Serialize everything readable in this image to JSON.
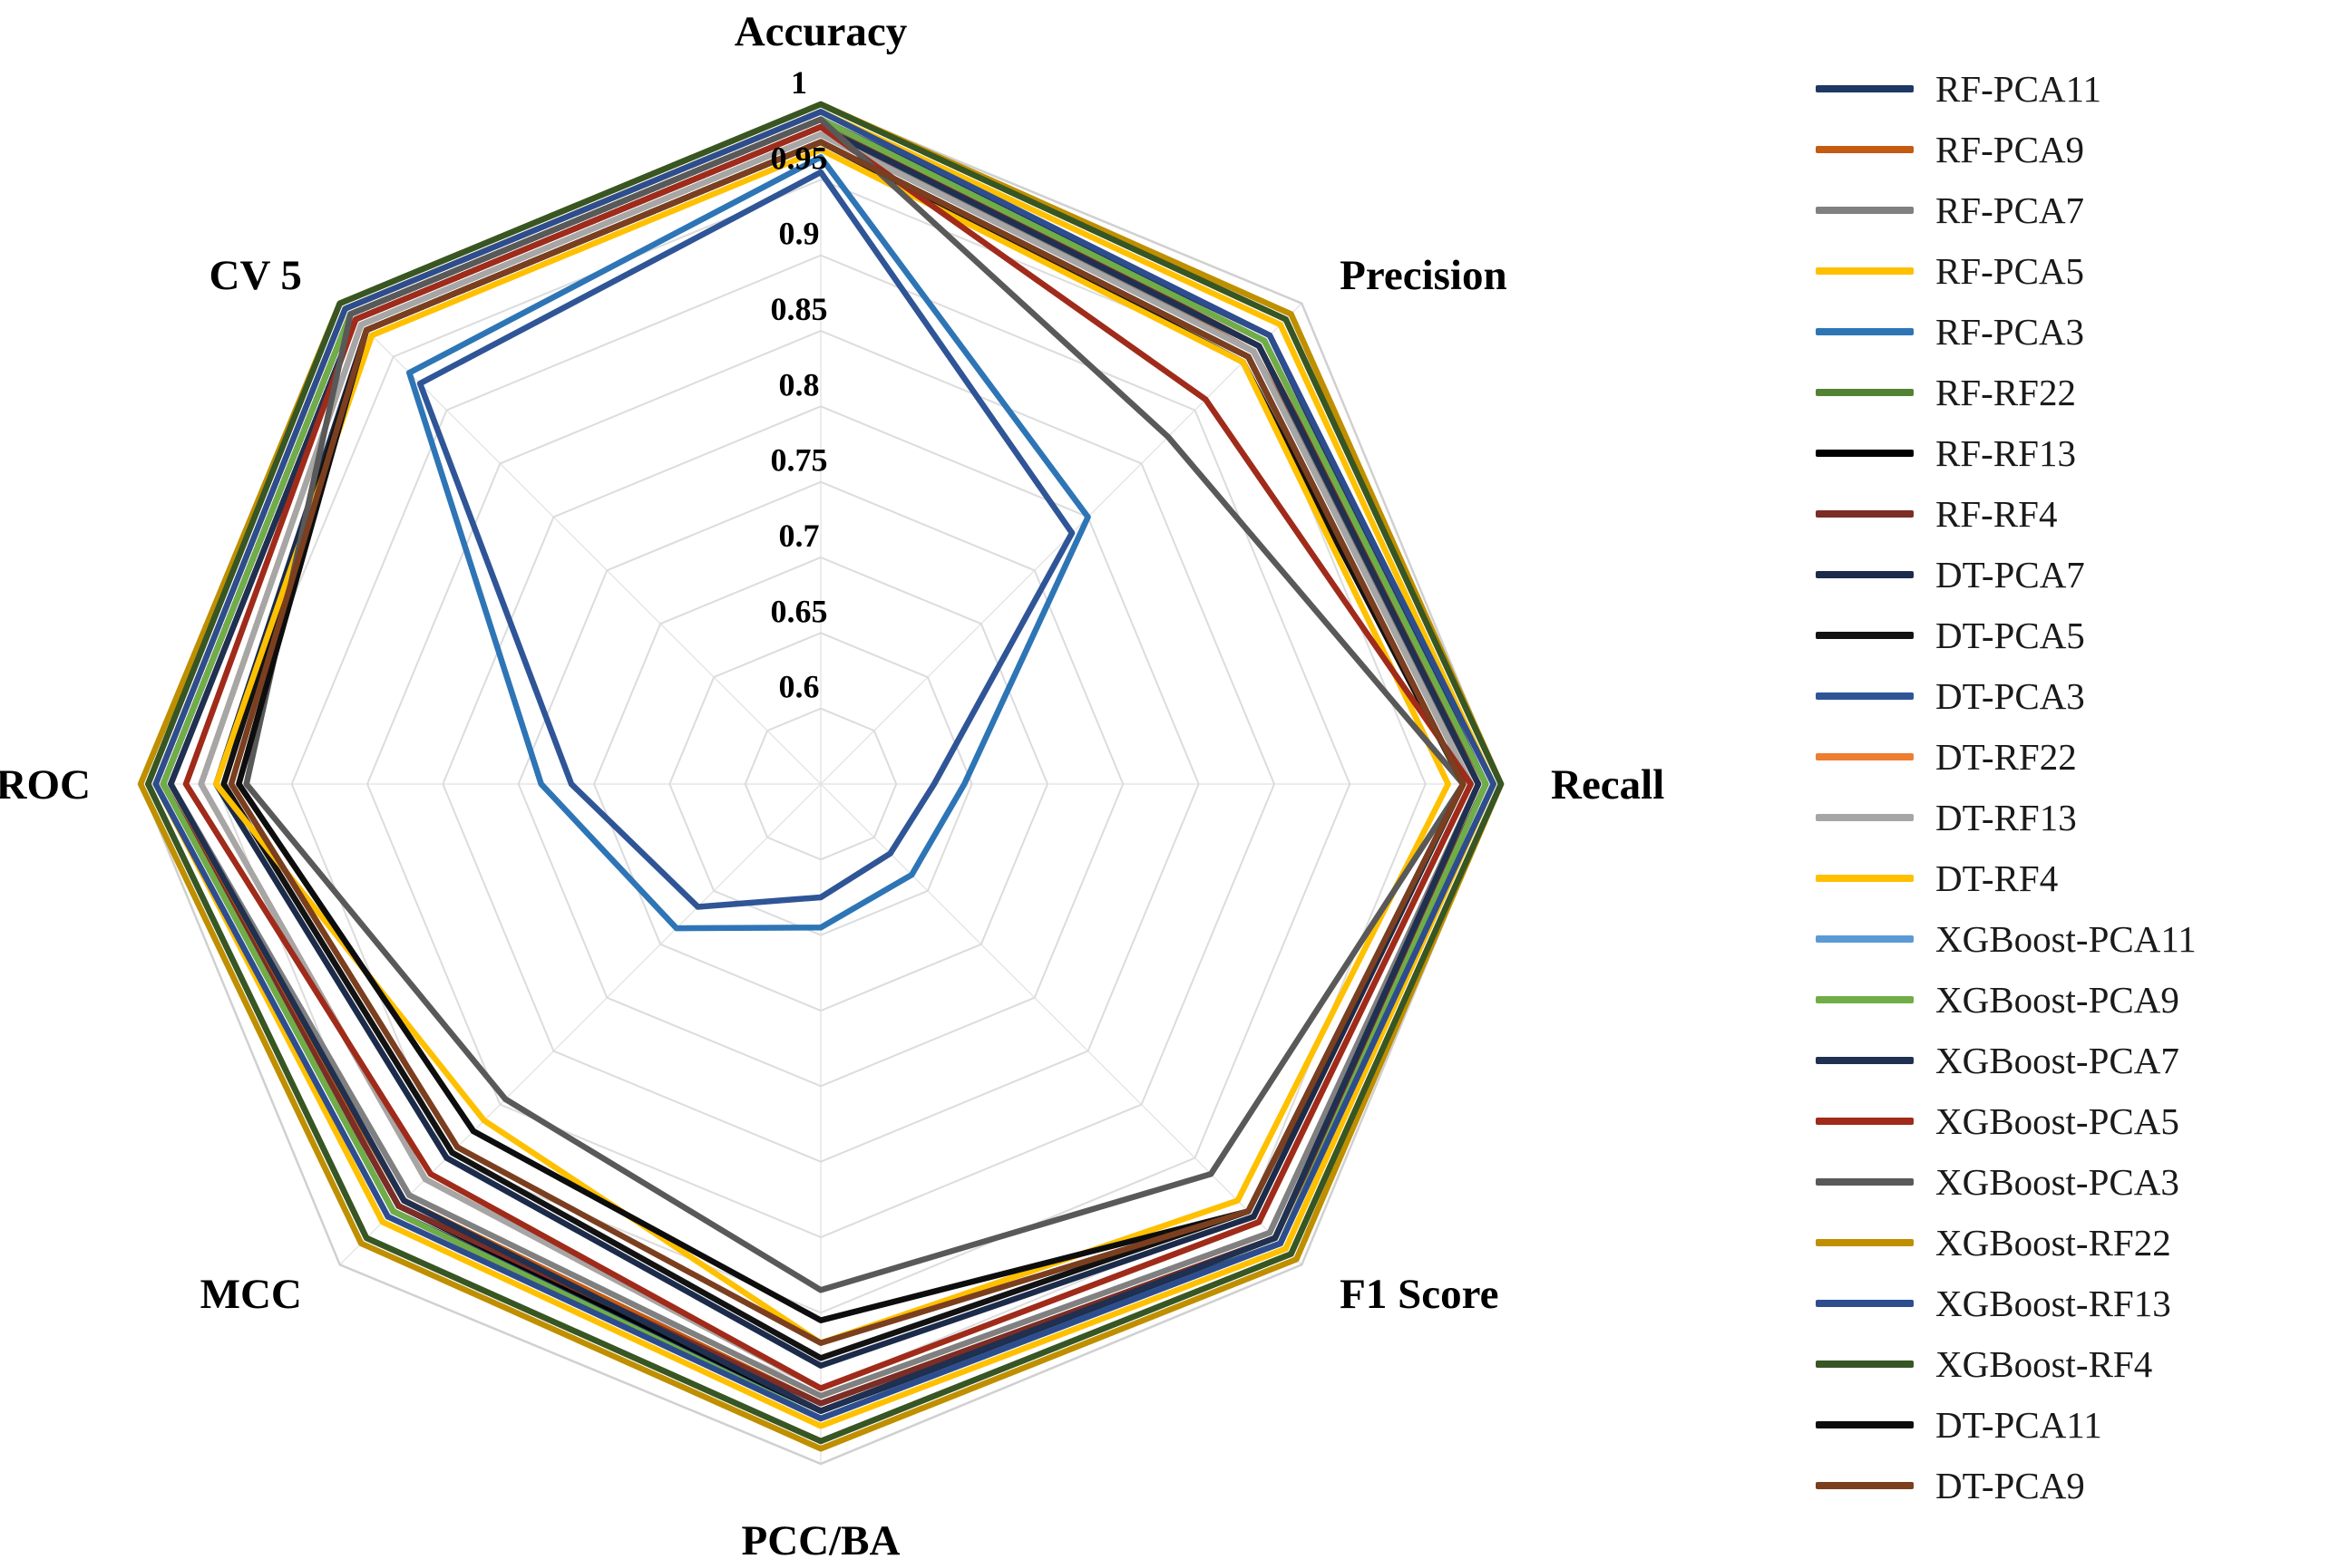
{
  "figure": {
    "description": "Radar chart comparing classifier performance metrics",
    "background_color": "#ffffff",
    "grid_color": "#dcdcdc",
    "text_color": "#000000"
  },
  "chart_data": {
    "type": "radar",
    "categories": [
      "Accuracy",
      "Precision",
      "Recall",
      "F1 Score",
      "PCC/BA",
      "MCC",
      "ROC",
      "CV 5"
    ],
    "axis_min": 0.55,
    "axis_max": 1.0,
    "ring_step": 0.05,
    "ticks": [
      {
        "label": "1",
        "value": 1.0
      },
      {
        "label": "0.95",
        "value": 0.95
      },
      {
        "label": "0.9",
        "value": 0.9
      },
      {
        "label": "0.85",
        "value": 0.85
      },
      {
        "label": "0.8",
        "value": 0.8
      },
      {
        "label": "0.75",
        "value": 0.75
      },
      {
        "label": "0.7",
        "value": 0.7
      },
      {
        "label": "0.65",
        "value": 0.65
      },
      {
        "label": "0.6",
        "value": 0.6
      }
    ],
    "legend_position": "right",
    "grid": true,
    "series": [
      {
        "name": "RF-PCA11",
        "color": "#1F3864",
        "values": [
          0.99,
          0.97,
          0.99,
          0.98,
          0.965,
          0.95,
          0.985,
          0.99
        ]
      },
      {
        "name": "RF-PCA9",
        "color": "#C55A11",
        "values": [
          0.99,
          0.955,
          0.99,
          0.975,
          0.96,
          0.94,
          0.985,
          0.99
        ]
      },
      {
        "name": "RF-PCA7",
        "color": "#808080",
        "values": [
          0.985,
          0.955,
          0.985,
          0.97,
          0.955,
          0.935,
          0.98,
          0.985
        ]
      },
      {
        "name": "RF-PCA5",
        "color": "#FFC000",
        "values": [
          0.995,
          0.98,
          0.995,
          0.985,
          0.975,
          0.96,
          0.99,
          0.995
        ]
      },
      {
        "name": "RF-PCA3",
        "color": "#2E75B6",
        "values": [
          0.965,
          0.8,
          0.645,
          0.635,
          0.645,
          0.685,
          0.735,
          0.935
        ]
      },
      {
        "name": "RF-RF22",
        "color": "#548235",
        "values": [
          1.0,
          0.985,
          1.0,
          0.99,
          0.985,
          0.975,
          0.995,
          1.0
        ]
      },
      {
        "name": "RF-RF13",
        "color": "#000000",
        "values": [
          0.99,
          0.965,
          0.99,
          0.975,
          0.965,
          0.945,
          0.985,
          0.99
        ]
      },
      {
        "name": "RF-RF4",
        "color": "#7B2D26",
        "values": [
          0.99,
          0.96,
          0.99,
          0.975,
          0.96,
          0.945,
          0.985,
          0.99
        ]
      },
      {
        "name": "DT-PCA7",
        "color": "#1C2B4A",
        "values": [
          0.975,
          0.95,
          0.975,
          0.955,
          0.935,
          0.9,
          0.95,
          0.975
        ]
      },
      {
        "name": "DT-PCA5",
        "color": "#121212",
        "values": [
          0.975,
          0.945,
          0.975,
          0.95,
          0.93,
          0.895,
          0.945,
          0.975
        ]
      },
      {
        "name": "DT-PCA3",
        "color": "#2F5597",
        "values": [
          0.955,
          0.785,
          0.625,
          0.615,
          0.625,
          0.665,
          0.715,
          0.925
        ]
      },
      {
        "name": "DT-RF22",
        "color": "#ED7D31",
        "values": [
          0.98,
          0.955,
          0.98,
          0.96,
          0.95,
          0.92,
          0.96,
          0.98
        ]
      },
      {
        "name": "DT-RF13",
        "color": "#A6A6A6",
        "values": [
          0.98,
          0.955,
          0.98,
          0.96,
          0.95,
          0.92,
          0.96,
          0.98
        ]
      },
      {
        "name": "DT-RF4",
        "color": "#FFC000",
        "values": [
          0.97,
          0.945,
          0.965,
          0.94,
          0.92,
          0.865,
          0.95,
          0.97
        ]
      },
      {
        "name": "XGBoost-PCA11",
        "color": "#5B9BD5",
        "values": [
          0.99,
          0.965,
          0.99,
          0.98,
          0.97,
          0.95,
          0.985,
          0.99
        ]
      },
      {
        "name": "XGBoost-PCA9",
        "color": "#70AD47",
        "values": [
          0.99,
          0.965,
          0.99,
          0.98,
          0.97,
          0.95,
          0.985,
          0.99
        ]
      },
      {
        "name": "XGBoost-PCA7",
        "color": "#1F3050",
        "values": [
          0.985,
          0.96,
          0.985,
          0.975,
          0.965,
          0.94,
          0.98,
          0.985
        ]
      },
      {
        "name": "XGBoost-PCA5",
        "color": "#A02B1A",
        "values": [
          0.985,
          0.91,
          0.98,
          0.96,
          0.95,
          0.915,
          0.97,
          0.985
        ]
      },
      {
        "name": "XGBoost-PCA3",
        "color": "#595959",
        "values": [
          0.99,
          0.875,
          0.975,
          0.915,
          0.885,
          0.845,
          0.93,
          0.99
        ]
      },
      {
        "name": "XGBoost-RF22",
        "color": "#BF8F00",
        "values": [
          1.0,
          0.99,
          1.0,
          0.995,
          0.99,
          0.98,
          1.0,
          1.0
        ]
      },
      {
        "name": "XGBoost-RF13",
        "color": "#2E4D8E",
        "values": [
          0.995,
          0.97,
          0.995,
          0.98,
          0.97,
          0.955,
          0.99,
          0.995
        ]
      },
      {
        "name": "XGBoost-RF4",
        "color": "#375623",
        "values": [
          1.0,
          0.985,
          1.0,
          0.99,
          0.985,
          0.975,
          0.995,
          1.0
        ]
      },
      {
        "name": "DT-PCA11",
        "color": "#0D0D0D",
        "values": [
          0.975,
          0.95,
          0.975,
          0.95,
          0.905,
          0.875,
          0.935,
          0.975
        ]
      },
      {
        "name": "DT-PCA9",
        "color": "#7B3F1F",
        "values": [
          0.975,
          0.95,
          0.975,
          0.95,
          0.92,
          0.89,
          0.94,
          0.975
        ]
      }
    ]
  }
}
